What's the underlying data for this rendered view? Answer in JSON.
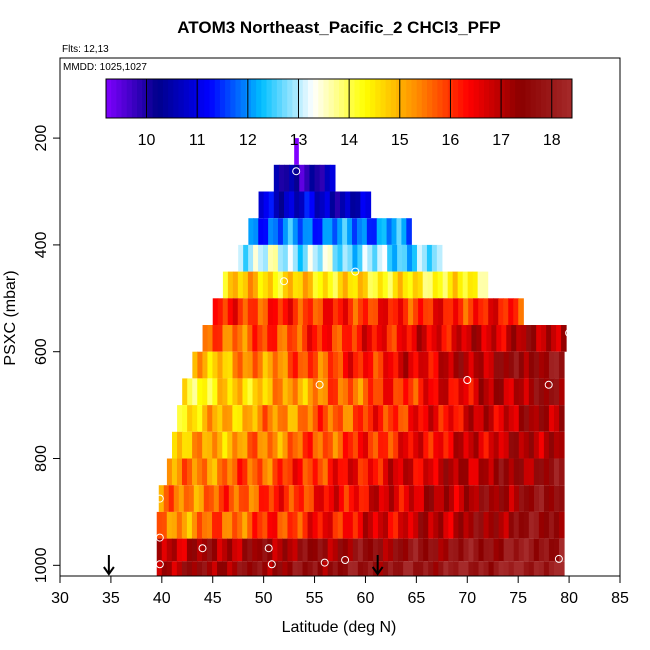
{
  "chart_data": {
    "type": "heatmap",
    "title": "ATOM3 Northeast_Pacific_2 CHCl3_PFP",
    "flights_label": "Flts: 12,13",
    "dates_label": "MMDD: 1025,1027",
    "xlabel": "Latitude (deg N)",
    "ylabel": "PSXC (mbar)",
    "xlim": [
      30,
      85
    ],
    "ylim": [
      1020,
      50
    ],
    "x_ticks": [
      "30",
      "35",
      "40",
      "45",
      "50",
      "55",
      "60",
      "65",
      "70",
      "75",
      "80",
      "85"
    ],
    "x_tick_values": [
      30,
      35,
      40,
      45,
      50,
      55,
      60,
      65,
      70,
      75,
      80,
      85
    ],
    "y_ticks": [
      "200",
      "400",
      "600",
      "800",
      "1000"
    ],
    "y_tick_values": [
      200,
      400,
      600,
      800,
      1000
    ],
    "colorbar": {
      "range": [
        9.2,
        18.4
      ],
      "tick_labels": [
        "10",
        "11",
        "12",
        "13",
        "14",
        "15",
        "16",
        "17",
        "18"
      ],
      "tick_values": [
        10,
        11,
        12,
        13,
        14,
        15,
        16,
        17,
        18
      ],
      "colors": [
        "#7f00ff",
        "#00008b",
        "#0000ff",
        "#00bfff",
        "#ffffff",
        "#ffff00",
        "#ff8c00",
        "#ff0000",
        "#8b0000",
        "#a52a2a"
      ]
    },
    "rows": [
      {
        "p": 225,
        "lat": [
          53.0,
          53.4
        ],
        "value": [
          9.2,
          9.2
        ]
      },
      {
        "p": 275,
        "lat": [
          51.0,
          57.0
        ],
        "value": [
          10.0,
          10.3
        ]
      },
      {
        "p": 325,
        "lat": [
          49.5,
          60.5
        ],
        "value": [
          11.0,
          10.5
        ]
      },
      {
        "p": 375,
        "lat": [
          48.5,
          64.5
        ],
        "value": [
          11.8,
          12.0
        ]
      },
      {
        "p": 425,
        "lat": [
          47.5,
          67.5
        ],
        "value": [
          13.2,
          12.5
        ]
      },
      {
        "p": 475,
        "lat": [
          46.0,
          72.0
        ],
        "value": [
          14.8,
          14.2
        ]
      },
      {
        "p": 525,
        "lat": [
          45.0,
          75.5
        ],
        "value": [
          16.0,
          16.2
        ]
      },
      {
        "p": 575,
        "lat": [
          44.0,
          79.7
        ],
        "value": [
          15.5,
          17.2
        ]
      },
      {
        "p": 625,
        "lat": [
          43.0,
          79.5
        ],
        "value": [
          14.8,
          17.8
        ]
      },
      {
        "p": 675,
        "lat": [
          42.0,
          79.5
        ],
        "value": [
          14.2,
          17.5
        ]
      },
      {
        "p": 725,
        "lat": [
          41.5,
          79.5
        ],
        "value": [
          14.6,
          17.3
        ]
      },
      {
        "p": 775,
        "lat": [
          41.0,
          79.5
        ],
        "value": [
          14.8,
          17.3
        ]
      },
      {
        "p": 825,
        "lat": [
          40.5,
          79.5
        ],
        "value": [
          15.2,
          17.6
        ]
      },
      {
        "p": 875,
        "lat": [
          39.7,
          79.5
        ],
        "value": [
          15.3,
          17.7
        ]
      },
      {
        "p": 925,
        "lat": [
          39.5,
          79.5
        ],
        "value": [
          15.2,
          17.8
        ]
      },
      {
        "p": 975,
        "lat": [
          39.5,
          79.5
        ],
        "value": [
          17.0,
          18.0
        ]
      },
      {
        "p": 1010,
        "lat": [
          39.5,
          79.5
        ],
        "value": [
          17.2,
          18.3
        ]
      }
    ],
    "sample_points": [
      {
        "lat": 53.2,
        "p": 262
      },
      {
        "lat": 59.0,
        "p": 450
      },
      {
        "lat": 52.0,
        "p": 468
      },
      {
        "lat": 80.0,
        "p": 565
      },
      {
        "lat": 55.5,
        "p": 662
      },
      {
        "lat": 70.0,
        "p": 653
      },
      {
        "lat": 78.0,
        "p": 662
      },
      {
        "lat": 39.8,
        "p": 875
      },
      {
        "lat": 39.8,
        "p": 948
      },
      {
        "lat": 44.0,
        "p": 968
      },
      {
        "lat": 50.5,
        "p": 968
      },
      {
        "lat": 39.8,
        "p": 998
      },
      {
        "lat": 50.8,
        "p": 998
      },
      {
        "lat": 56.0,
        "p": 995
      },
      {
        "lat": 58.0,
        "p": 990
      },
      {
        "lat": 79.0,
        "p": 988
      }
    ],
    "arrows": [
      {
        "lat": 34.8
      },
      {
        "lat": 61.2
      }
    ]
  }
}
